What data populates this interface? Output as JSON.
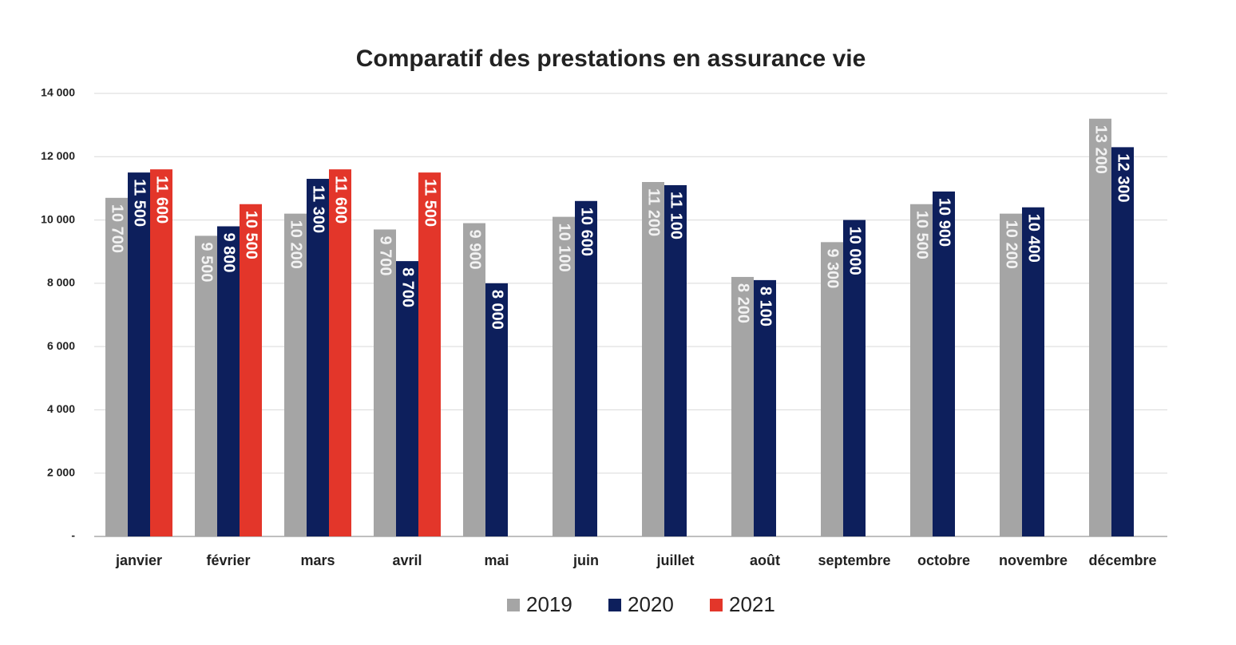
{
  "chart_data": {
    "type": "bar",
    "title": "Comparatif des prestations en assurance vie",
    "categories": [
      "janvier",
      "février",
      "mars",
      "avril",
      "mai",
      "juin",
      "juillet",
      "août",
      "septembre",
      "octobre",
      "novembre",
      "décembre"
    ],
    "series": [
      {
        "name": "2019",
        "color": "#a5a5a5",
        "values": [
          10700,
          9500,
          10200,
          9700,
          9900,
          10100,
          11200,
          8200,
          9300,
          10500,
          10200,
          13200
        ],
        "value_labels": [
          "10 700",
          "9 500",
          "10 200",
          "9 700",
          "9 900",
          "10 100",
          "11 200",
          "8 200",
          "9 300",
          "10 500",
          "10 200",
          "13 200"
        ]
      },
      {
        "name": "2020",
        "color": "#0d1f5c",
        "values": [
          11500,
          9800,
          11300,
          8700,
          8000,
          10600,
          11100,
          8100,
          10000,
          10900,
          10400,
          12300
        ],
        "value_labels": [
          "11 500",
          "9 800",
          "11 300",
          "8 700",
          "8 000",
          "10 600",
          "11 100",
          "8 100",
          "10 000",
          "10 900",
          "10 400",
          "12 300"
        ]
      },
      {
        "name": "2021",
        "color": "#e3362a",
        "values": [
          11600,
          10500,
          11600,
          11500,
          null,
          null,
          null,
          null,
          null,
          null,
          null,
          null
        ],
        "value_labels": [
          "11 600",
          "10 500",
          "11 600",
          "11 500",
          null,
          null,
          null,
          null,
          null,
          null,
          null,
          null
        ]
      }
    ],
    "ylim": [
      0,
      14000
    ],
    "yticks": [
      {
        "value": 0,
        "label": "-"
      },
      {
        "value": 2000,
        "label": "2 000"
      },
      {
        "value": 4000,
        "label": "4 000"
      },
      {
        "value": 6000,
        "label": "6 000"
      },
      {
        "value": 8000,
        "label": "8 000"
      },
      {
        "value": 10000,
        "label": "10 000"
      },
      {
        "value": 12000,
        "label": "12 000"
      },
      {
        "value": 14000,
        "label": "14 000"
      }
    ],
    "grid": true,
    "legend": "bottom"
  }
}
